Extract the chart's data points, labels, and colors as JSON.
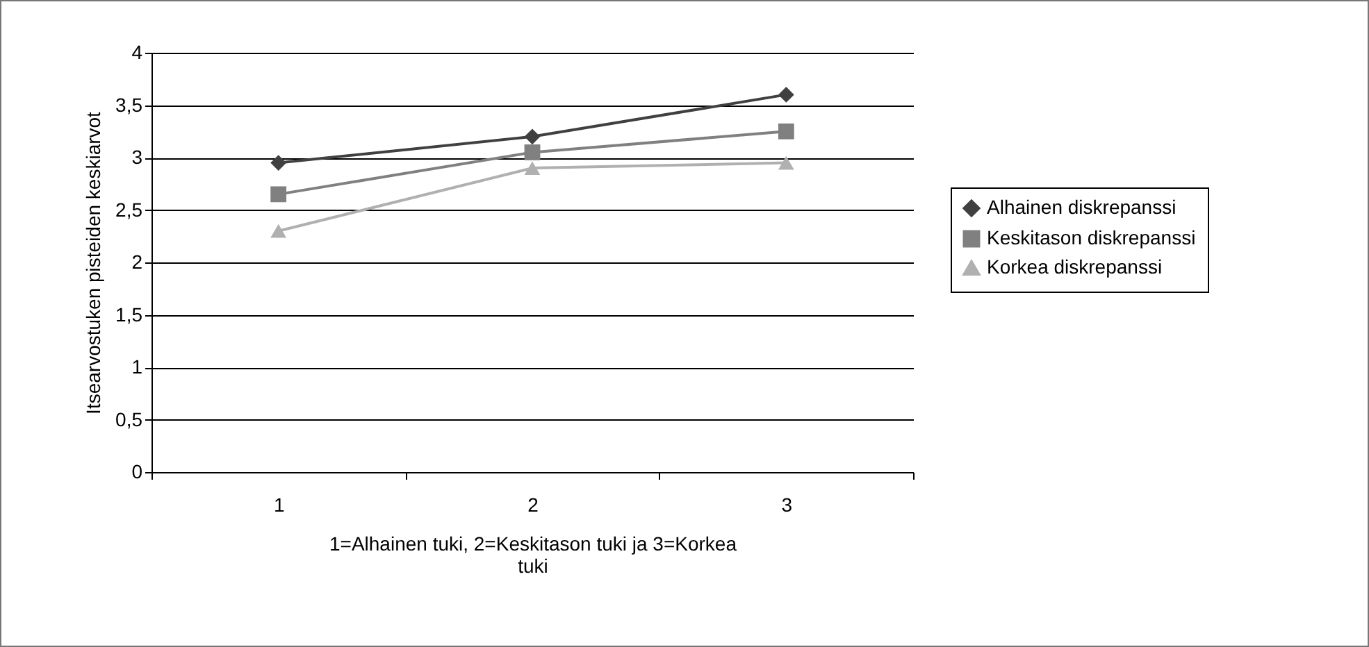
{
  "chart_data": {
    "type": "line",
    "xlabel": "1=Alhainen tuki, 2=Keskitason tuki ja 3=Korkea tuki",
    "ylabel": "Itsearvostuken pisteiden keskiarvot",
    "categories": [
      "1",
      "2",
      "3"
    ],
    "series": [
      {
        "name": "Alhainen diskrepanssi",
        "color": "#404040",
        "marker": "diamond",
        "values": [
          2.95,
          3.2,
          3.6
        ]
      },
      {
        "name": "Keskitason diskrepanssi",
        "color": "#808080",
        "marker": "square",
        "values": [
          2.65,
          3.05,
          3.25
        ]
      },
      {
        "name": "Korkea diskrepanssi",
        "color": "#b0b0b0",
        "marker": "triangle",
        "values": [
          2.3,
          2.9,
          2.95
        ]
      }
    ],
    "ylim": [
      0,
      4
    ],
    "yticks": [
      0,
      {
        "value": 0.5,
        "label": "0,5"
      },
      1,
      {
        "value": 1.5,
        "label": "1,5"
      },
      2,
      {
        "value": 2.5,
        "label": "2,5"
      },
      3,
      {
        "value": 3.5,
        "label": "3,5"
      },
      4
    ],
    "grid": "y",
    "legend": "right",
    "line_style": "solid"
  }
}
